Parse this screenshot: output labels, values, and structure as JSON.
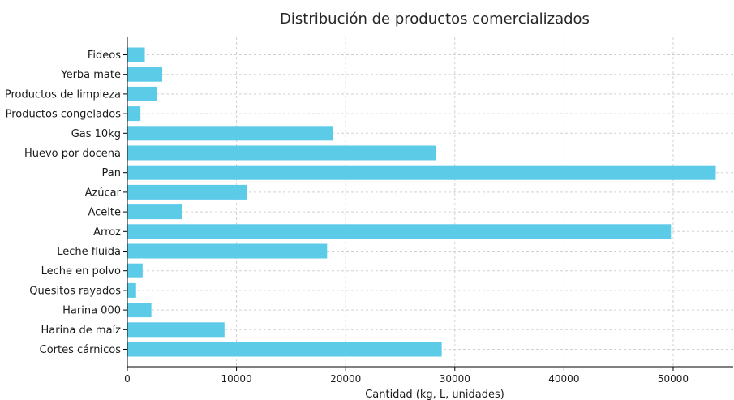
{
  "chart_data": {
    "type": "bar",
    "orientation": "horizontal",
    "title": "Distribución de productos comercializados",
    "xlabel": "Cantidad (kg, L, unidades)",
    "ylabel": "",
    "xlim": [
      0,
      55500
    ],
    "xticks": [
      0,
      10000,
      20000,
      30000,
      40000,
      50000
    ],
    "xtick_labels": [
      "0",
      "10000",
      "20000",
      "30000",
      "40000",
      "50000"
    ],
    "grid": true,
    "bar_color": "#5bcbe8",
    "categories": [
      "Fideos",
      "Yerba mate",
      "Productos de limpieza",
      "Productos congelados",
      "Gas 10kg",
      "Huevo por docena",
      "Pan",
      "Azúcar",
      "Aceite",
      "Arroz",
      "Leche fluida",
      "Leche en polvo",
      "Quesitos rayados",
      "Harina 000",
      "Harina de maíz",
      "Cortes cárnicos"
    ],
    "values": [
      1600,
      3200,
      2700,
      1200,
      18800,
      28300,
      53900,
      11000,
      5000,
      49800,
      18300,
      1400,
      800,
      2200,
      8900,
      28800
    ]
  }
}
